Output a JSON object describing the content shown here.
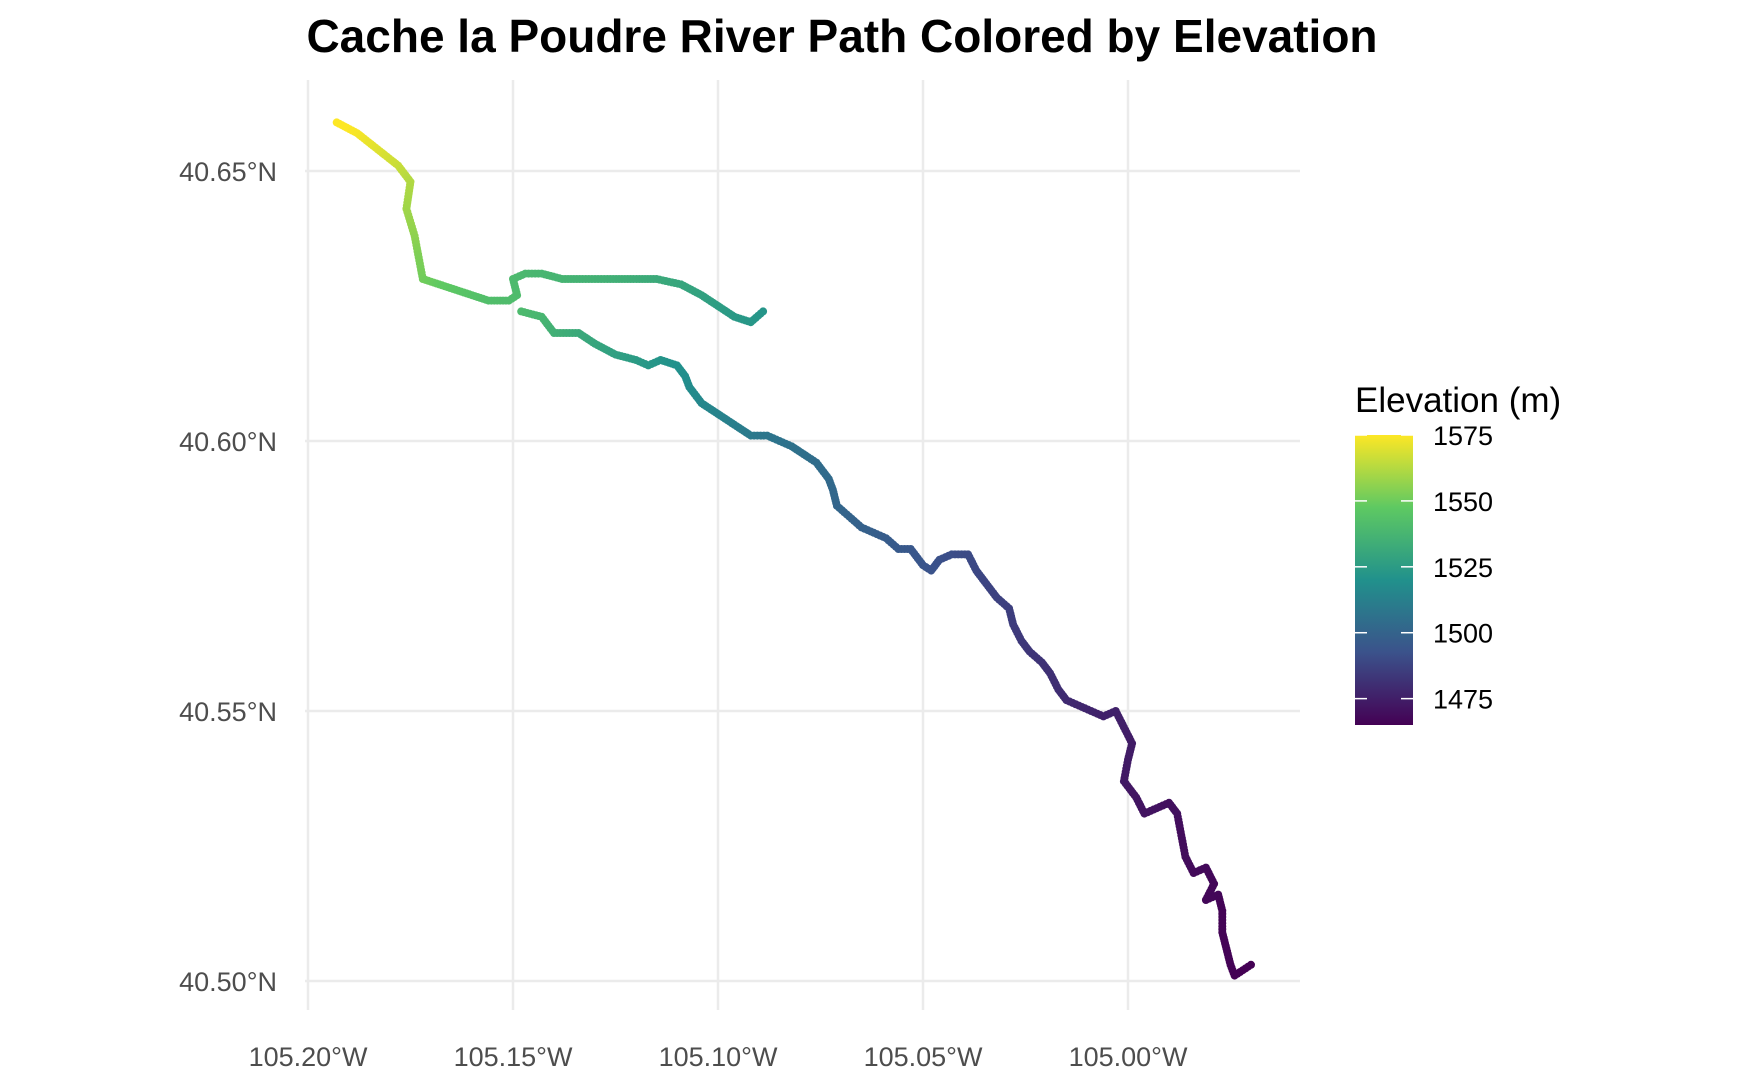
{
  "chart_data": {
    "type": "scatter",
    "title": "Cache la Poudre River Path Colored by Elevation",
    "xlabel": "",
    "ylabel": "",
    "x_ticks": [
      "105.20°W",
      "105.15°W",
      "105.10°W",
      "105.05°W",
      "105.00°W"
    ],
    "x_tick_values": [
      -105.2,
      -105.15,
      -105.1,
      -105.05,
      -105.0
    ],
    "y_ticks": [
      "40.65°N",
      "40.60°N",
      "40.55°N",
      "40.50°N"
    ],
    "y_tick_values": [
      40.65,
      40.6,
      40.55,
      40.5
    ],
    "xlim": [
      -105.2,
      -104.97
    ],
    "ylim": [
      40.497,
      40.662
    ],
    "grid": true,
    "legend": {
      "title": "Elevation (m)",
      "placement": "right",
      "labels": [
        "1575",
        "1550",
        "1525",
        "1500",
        "1475"
      ],
      "values": [
        1575,
        1550,
        1525,
        1500,
        1475
      ],
      "range": [
        1465,
        1575
      ],
      "colormap": [
        "#440154",
        "#3b528b",
        "#21918c",
        "#5ec962",
        "#fde725"
      ]
    },
    "series": [
      {
        "path": [
          [
            -105.193,
            40.659,
            1576
          ],
          [
            -105.188,
            40.657,
            1574
          ],
          [
            -105.183,
            40.654,
            1570
          ],
          [
            -105.178,
            40.651,
            1566
          ],
          [
            -105.175,
            40.648,
            1562
          ],
          [
            -105.176,
            40.643,
            1559
          ],
          [
            -105.174,
            40.638,
            1556
          ],
          [
            -105.173,
            40.634,
            1553
          ],
          [
            -105.172,
            40.63,
            1551
          ],
          [
            -105.168,
            40.629,
            1548
          ],
          [
            -105.164,
            40.628,
            1546
          ],
          [
            -105.16,
            40.627,
            1544
          ],
          [
            -105.156,
            40.626,
            1542
          ],
          [
            -105.151,
            40.626,
            1541
          ],
          [
            -105.149,
            40.627,
            1541
          ],
          [
            -105.15,
            40.63,
            1540
          ],
          [
            -105.147,
            40.631,
            1539
          ],
          [
            -105.143,
            40.631,
            1538
          ],
          [
            -105.138,
            40.63,
            1537
          ],
          [
            -105.133,
            40.63,
            1536
          ],
          [
            -105.127,
            40.63,
            1535
          ],
          [
            -105.122,
            40.63,
            1534
          ],
          [
            -105.115,
            40.63,
            1532
          ],
          [
            -105.109,
            40.629,
            1530
          ],
          [
            -105.104,
            40.627,
            1528
          ],
          [
            -105.1,
            40.625,
            1526
          ],
          [
            -105.096,
            40.623,
            1524
          ],
          [
            -105.092,
            40.622,
            1523
          ],
          [
            -105.089,
            40.624,
            1522
          ]
        ]
      },
      {
        "path": [
          [
            -105.148,
            40.624,
            1540
          ],
          [
            -105.143,
            40.623,
            1538
          ],
          [
            -105.14,
            40.62,
            1535
          ],
          [
            -105.134,
            40.62,
            1532
          ],
          [
            -105.13,
            40.618,
            1530
          ],
          [
            -105.125,
            40.616,
            1527
          ],
          [
            -105.12,
            40.615,
            1525
          ],
          [
            -105.117,
            40.614,
            1523
          ],
          [
            -105.114,
            40.615,
            1522
          ],
          [
            -105.11,
            40.614,
            1520
          ],
          [
            -105.108,
            40.612,
            1519
          ],
          [
            -105.107,
            40.61,
            1518
          ],
          [
            -105.104,
            40.607,
            1516
          ],
          [
            -105.1,
            40.605,
            1514
          ],
          [
            -105.096,
            40.603,
            1512
          ],
          [
            -105.092,
            40.601,
            1510
          ],
          [
            -105.088,
            40.601,
            1508
          ],
          [
            -105.085,
            40.6,
            1507
          ],
          [
            -105.082,
            40.599,
            1506
          ],
          [
            -105.078,
            40.597,
            1505
          ],
          [
            -105.076,
            40.596,
            1504
          ],
          [
            -105.073,
            40.593,
            1503
          ],
          [
            -105.072,
            40.591,
            1502
          ],
          [
            -105.071,
            40.588,
            1501
          ],
          [
            -105.068,
            40.586,
            1500
          ],
          [
            -105.065,
            40.584,
            1499
          ],
          [
            -105.062,
            40.583,
            1498
          ],
          [
            -105.059,
            40.582,
            1497
          ],
          [
            -105.056,
            40.58,
            1496
          ],
          [
            -105.053,
            40.58,
            1495
          ],
          [
            -105.05,
            40.577,
            1494
          ],
          [
            -105.048,
            40.576,
            1493
          ],
          [
            -105.046,
            40.578,
            1492
          ],
          [
            -105.043,
            40.579,
            1491
          ],
          [
            -105.039,
            40.579,
            1490
          ],
          [
            -105.037,
            40.576,
            1489
          ],
          [
            -105.035,
            40.574,
            1488
          ],
          [
            -105.032,
            40.571,
            1487
          ],
          [
            -105.029,
            40.569,
            1486
          ],
          [
            -105.028,
            40.566,
            1485
          ],
          [
            -105.026,
            40.563,
            1484
          ],
          [
            -105.024,
            40.561,
            1483
          ],
          [
            -105.021,
            40.559,
            1482
          ],
          [
            -105.019,
            40.557,
            1481
          ],
          [
            -105.017,
            40.554,
            1480
          ],
          [
            -105.015,
            40.552,
            1479
          ],
          [
            -105.012,
            40.551,
            1478
          ],
          [
            -105.009,
            40.55,
            1477
          ],
          [
            -105.006,
            40.549,
            1476
          ],
          [
            -105.003,
            40.55,
            1476
          ],
          [
            -105.001,
            40.547,
            1475
          ],
          [
            -104.999,
            40.544,
            1474
          ],
          [
            -105.0,
            40.541,
            1474
          ],
          [
            -105.001,
            40.537,
            1473
          ],
          [
            -104.998,
            40.534,
            1472
          ],
          [
            -104.996,
            40.531,
            1471
          ],
          [
            -104.993,
            40.532,
            1471
          ],
          [
            -104.99,
            40.533,
            1470
          ],
          [
            -104.988,
            40.531,
            1470
          ],
          [
            -104.987,
            40.527,
            1469
          ],
          [
            -104.986,
            40.523,
            1469
          ],
          [
            -104.984,
            40.52,
            1468
          ],
          [
            -104.981,
            40.521,
            1468
          ],
          [
            -104.979,
            40.518,
            1467
          ],
          [
            -104.981,
            40.515,
            1467
          ],
          [
            -104.978,
            40.516,
            1467
          ],
          [
            -104.977,
            40.513,
            1466
          ],
          [
            -104.977,
            40.509,
            1466
          ],
          [
            -104.976,
            40.506,
            1466
          ],
          [
            -104.975,
            40.503,
            1466
          ],
          [
            -104.974,
            40.501,
            1465
          ],
          [
            -104.972,
            40.502,
            1465
          ],
          [
            -104.97,
            40.503,
            1465
          ]
        ]
      }
    ]
  }
}
